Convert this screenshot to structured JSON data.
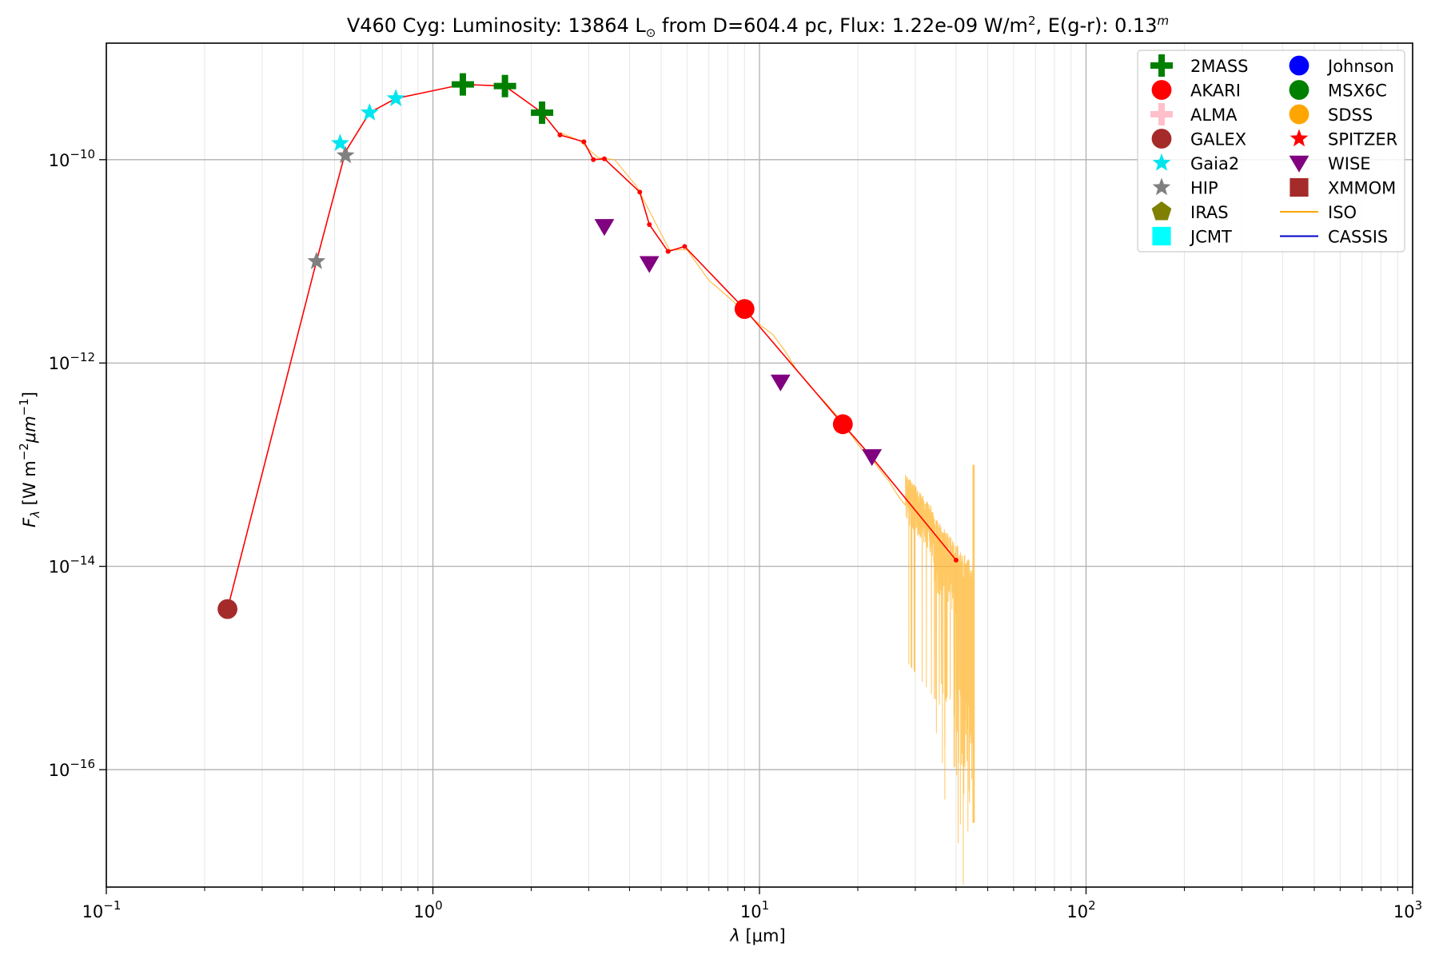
{
  "chart_data": {
    "type": "scatter",
    "title_parts": {
      "pre": "V460 Cyg:  Luminosity: 13864 L",
      "sun": "⊙",
      "mid": " from D=604.4 pc, Flux: 1.22e-09 W/m",
      "sq": "2",
      "post": ", E(g-r): 0.13",
      "m": "m"
    },
    "xlabel": {
      "lambda": "λ",
      "unit": " [μm]"
    },
    "ylabel": {
      "f": "F",
      "sub": "λ",
      "rest1": " [W m",
      "sup1": "−2",
      "rest2": "μm",
      "sup2": "−1",
      "rest3": "]"
    },
    "x_scale": "log",
    "y_scale": "log",
    "xlim": [
      0.1,
      1000
    ],
    "ylim": [
      7e-18,
      1.4e-09
    ],
    "grid": true,
    "legend_position": "top-right",
    "x_ticks": [
      {
        "value": 0.1,
        "base": "10",
        "exp": "−1"
      },
      {
        "value": 1,
        "base": "10",
        "exp": "0"
      },
      {
        "value": 10,
        "base": "10",
        "exp": "1"
      },
      {
        "value": 100,
        "base": "10",
        "exp": "2"
      },
      {
        "value": 1000,
        "base": "10",
        "exp": "3"
      }
    ],
    "y_ticks": [
      {
        "value": 1e-10,
        "base": "10",
        "exp": "−10"
      },
      {
        "value": 1e-12,
        "base": "10",
        "exp": "−12"
      },
      {
        "value": 1e-14,
        "base": "10",
        "exp": "−14"
      },
      {
        "value": 1e-16,
        "base": "10",
        "exp": "−16"
      }
    ],
    "sed_line": {
      "color": "#ff0000",
      "points": [
        [
          0.235,
          3.8e-15
        ],
        [
          0.44,
          1e-11
        ],
        [
          0.54,
          1.2e-10
        ],
        [
          0.64,
          2.9e-10
        ],
        [
          0.77,
          4e-10
        ],
        [
          1.235,
          5.5e-10
        ],
        [
          1.662,
          5.3e-10
        ],
        [
          2.159,
          2.9e-10
        ],
        [
          2.45,
          1.75e-10
        ],
        [
          2.9,
          1.5e-10
        ],
        [
          3.1,
          1e-10
        ],
        [
          3.35,
          1.02e-10
        ],
        [
          4.3,
          4.8e-11
        ],
        [
          4.6,
          2.3e-11
        ],
        [
          5.25,
          1.25e-11
        ],
        [
          5.9,
          1.4e-11
        ],
        [
          9.0,
          3.4e-12
        ],
        [
          18.0,
          2.5e-13
        ],
        [
          22.0,
          1.2e-13
        ],
        [
          40.0,
          1.15e-14
        ]
      ]
    },
    "iso_spectrum": {
      "color": "#ffb52e",
      "smooth": [
        [
          2.45,
          1.85e-10
        ],
        [
          2.8,
          1.55e-10
        ],
        [
          3.2,
          1.05e-10
        ],
        [
          3.6,
          1e-10
        ],
        [
          4.2,
          5.5e-11
        ],
        [
          5.3,
          1.3e-11
        ],
        [
          6.0,
          1.3e-11
        ],
        [
          7.0,
          6.5e-12
        ],
        [
          8.0,
          4.5e-12
        ],
        [
          9.0,
          3.2e-12
        ],
        [
          10.0,
          2.4e-12
        ],
        [
          11.0,
          1.9e-12
        ],
        [
          12.0,
          1.3e-12
        ],
        [
          13.0,
          8.5e-13
        ],
        [
          14.0,
          6.5e-13
        ],
        [
          15.0,
          5e-13
        ],
        [
          16.0,
          4e-13
        ],
        [
          17.0,
          3.2e-13
        ],
        [
          18.0,
          2.6e-13
        ],
        [
          19.0,
          2e-13
        ],
        [
          20.0,
          1.6e-13
        ],
        [
          21.0,
          1.3e-13
        ],
        [
          22.0,
          1.15e-13
        ],
        [
          23.0,
          9.5e-14
        ],
        [
          24.0,
          8e-14
        ],
        [
          25.0,
          6.8e-14
        ],
        [
          26.0,
          5.5e-14
        ],
        [
          27.0,
          4.6e-14
        ],
        [
          28.0,
          4e-14
        ]
      ],
      "noisy_range": [
        28.0,
        45.5
      ]
    },
    "series": [
      {
        "name": "2MASS",
        "marker": "plus",
        "color": "#008000",
        "points": [
          [
            1.235,
            5.5e-10
          ],
          [
            1.662,
            5.3e-10
          ],
          [
            2.159,
            2.9e-10
          ]
        ]
      },
      {
        "name": "AKARI",
        "marker": "circle",
        "color": "#ff0000",
        "points": [
          [
            9.0,
            3.4e-12
          ],
          [
            18.0,
            2.5e-13
          ]
        ]
      },
      {
        "name": "ALMA",
        "marker": "plus",
        "color": "#ffc0cb",
        "points": []
      },
      {
        "name": "GALEX",
        "marker": "circle",
        "color": "#a52a2a",
        "points": [
          [
            0.235,
            3.8e-15
          ]
        ]
      },
      {
        "name": "Gaia2",
        "marker": "star",
        "color": "#00e5ee",
        "points": [
          [
            0.52,
            1.45e-10
          ],
          [
            0.64,
            2.9e-10
          ],
          [
            0.77,
            4e-10
          ]
        ]
      },
      {
        "name": "HIP",
        "marker": "star",
        "color": "#808080",
        "points": [
          [
            0.44,
            1e-11
          ],
          [
            0.54,
            1.1e-10
          ]
        ]
      },
      {
        "name": "IRAS",
        "marker": "pentagon",
        "color": "#808000",
        "points": []
      },
      {
        "name": "JCMT",
        "marker": "square",
        "color": "#00ffff",
        "points": []
      },
      {
        "name": "Johnson",
        "marker": "circle",
        "color": "#0000ff",
        "points": []
      },
      {
        "name": "MSX6C",
        "marker": "circle",
        "color": "#008000",
        "points": []
      },
      {
        "name": "SDSS",
        "marker": "circle",
        "color": "#ffa500",
        "points": []
      },
      {
        "name": "SPITZER",
        "marker": "star",
        "color": "#ff0000",
        "points": []
      },
      {
        "name": "WISE",
        "marker": "triangle-down",
        "color": "#800080",
        "points": [
          [
            3.35,
            2.2e-11
          ],
          [
            4.6,
            9.5e-12
          ],
          [
            11.6,
            6.5e-13
          ],
          [
            22.1,
            1.2e-13
          ]
        ]
      },
      {
        "name": "XMMOM",
        "marker": "square",
        "color": "#a52a2a",
        "points": []
      },
      {
        "name": "ISO",
        "marker": "line",
        "color": "#ffa500",
        "points": []
      },
      {
        "name": "CASSIS",
        "marker": "line",
        "color": "#0000cd",
        "points": []
      }
    ]
  }
}
